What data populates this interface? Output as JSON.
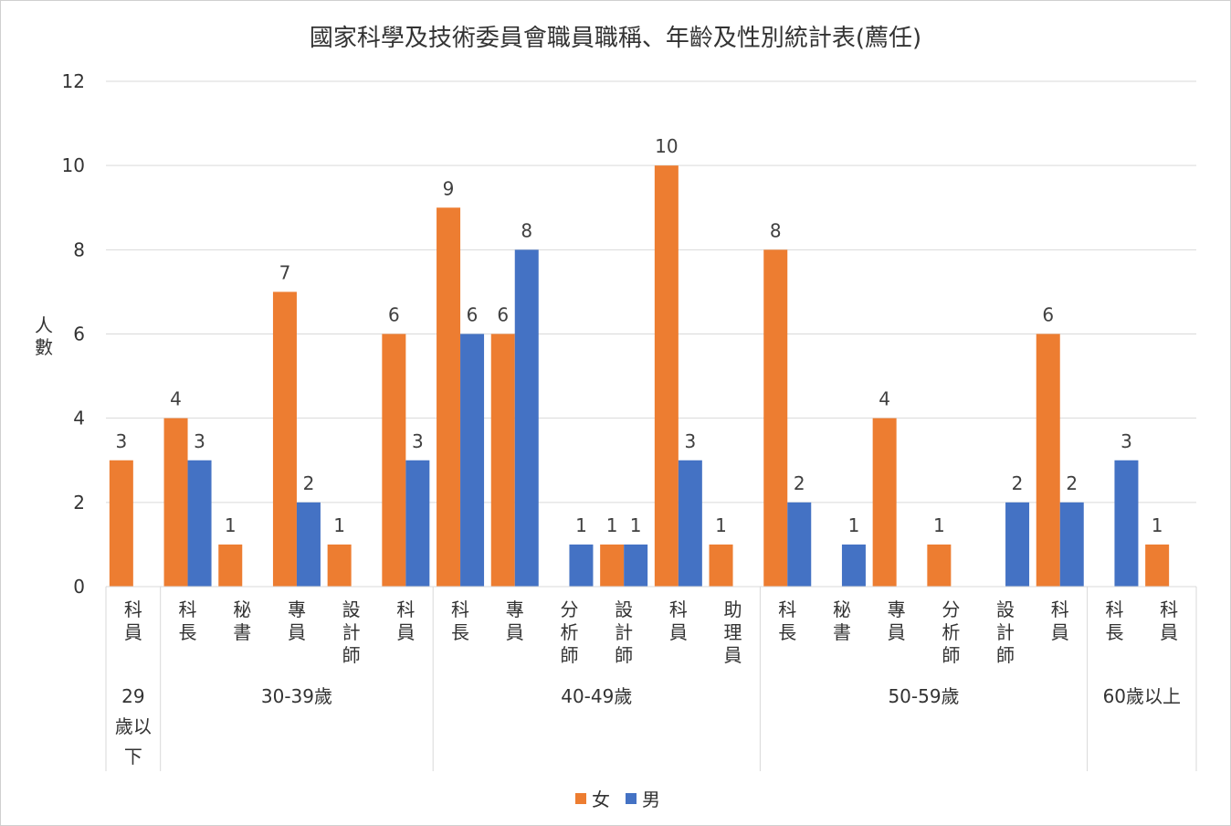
{
  "chart_data": {
    "type": "bar",
    "title": "國家科學及技術委員會職員職稱、年齡及性別統計表(薦任)",
    "ylabel": "人數",
    "xlabel": "",
    "ylim": [
      0,
      12
    ],
    "yticks": [
      0,
      2,
      4,
      6,
      8,
      10,
      12
    ],
    "grid": true,
    "legend_position": "bottom",
    "colors": {
      "女": "#ED7D31",
      "男": "#4472C4"
    },
    "series_names": [
      "女",
      "男"
    ],
    "groups": [
      {
        "label": "29歲以下",
        "categories": [
          {
            "label": "科員",
            "female": 3,
            "male": null
          }
        ]
      },
      {
        "label": "30-39歲",
        "categories": [
          {
            "label": "科長",
            "female": 4,
            "male": 3
          },
          {
            "label": "秘書",
            "female": 1,
            "male": null
          },
          {
            "label": "專員",
            "female": 7,
            "male": 2
          },
          {
            "label": "設計師",
            "female": 1,
            "male": null
          },
          {
            "label": "科員",
            "female": 6,
            "male": 3
          }
        ]
      },
      {
        "label": "40-49歲",
        "categories": [
          {
            "label": "科長",
            "female": 9,
            "male": 6
          },
          {
            "label": "專員",
            "female": 6,
            "male": 8
          },
          {
            "label": "分析師",
            "female": null,
            "male": 1
          },
          {
            "label": "設計師",
            "female": 1,
            "male": 1
          },
          {
            "label": "科員",
            "female": 10,
            "male": 3
          },
          {
            "label": "助理員",
            "female": 1,
            "male": null
          }
        ]
      },
      {
        "label": "50-59歲",
        "categories": [
          {
            "label": "科長",
            "female": 8,
            "male": 2
          },
          {
            "label": "秘書",
            "female": null,
            "male": 1
          },
          {
            "label": "專員",
            "female": 4,
            "male": null
          },
          {
            "label": "分析師",
            "female": 1,
            "male": null
          },
          {
            "label": "設計師",
            "female": null,
            "male": 2
          },
          {
            "label": "科員",
            "female": 6,
            "male": 2
          }
        ]
      },
      {
        "label": "60歲以上",
        "categories": [
          {
            "label": "科長",
            "female": null,
            "male": 3
          },
          {
            "label": "科員",
            "female": 1,
            "male": null
          }
        ]
      }
    ]
  }
}
